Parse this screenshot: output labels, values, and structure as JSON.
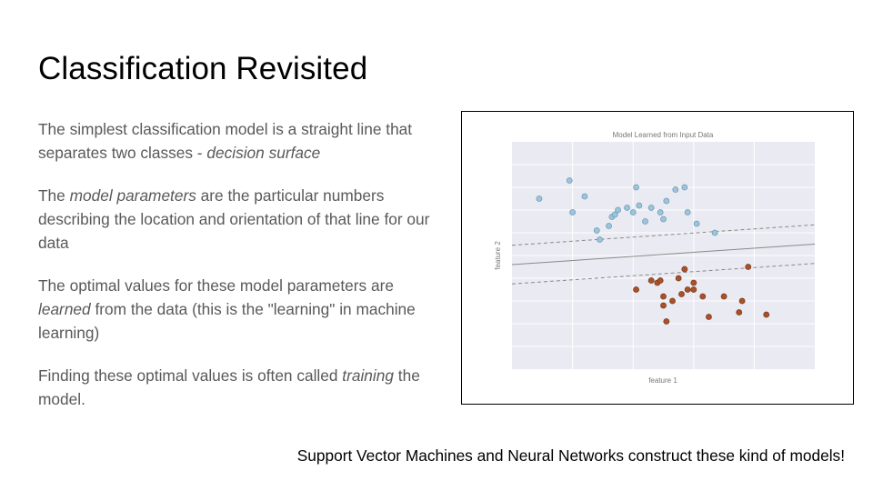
{
  "slide": {
    "title": "Classification Revisited",
    "paragraphs": [
      [
        {
          "text": "The simplest classification model is a straight line that separates two classes - ",
          "italic": false
        },
        {
          "text": "decision surface",
          "italic": true
        }
      ],
      [
        {
          "text": "The ",
          "italic": false
        },
        {
          "text": "model parameters",
          "italic": true
        },
        {
          "text": " are the particular numbers describing the location and orientation of that line for our data",
          "italic": false
        }
      ],
      [
        {
          "text": "The optimal values for these model parameters are ",
          "italic": false
        },
        {
          "text": "learned",
          "italic": true
        },
        {
          "text": " from the data (this is the \"learning\" in machine learning)",
          "italic": false
        }
      ],
      [
        {
          "text": "Finding these optimal values is often called ",
          "italic": false
        },
        {
          "text": "training",
          "italic": true
        },
        {
          "text": " the model.",
          "italic": false
        }
      ]
    ],
    "footer": "Support Vector Machines and Neural Networks construct these kind of models!"
  },
  "chart_data": {
    "type": "scatter",
    "title": "Model Learned from Input Data",
    "xlabel": "feature 1",
    "ylabel": "feature 2",
    "xlim": [
      0,
      10
    ],
    "ylim": [
      0,
      10
    ],
    "grid": true,
    "legend": "none",
    "colors": {
      "class_a": "#9dc4d9",
      "class_a_edge": "#6e9db8",
      "class_b": "#a8522a",
      "class_b_edge": "#7f3a1b",
      "plot_bg": "#eaeaf2",
      "decision_line": "#8a8a8a"
    },
    "series": [
      {
        "class": "class_a",
        "x": [
          0.9,
          1.9,
          2.0,
          2.4,
          2.8,
          2.9,
          3.2,
          3.3,
          3.4,
          3.5,
          3.8,
          4.0,
          4.1,
          4.2,
          4.4,
          4.6,
          4.9,
          5.0,
          5.1,
          5.4,
          5.7,
          5.8,
          6.1,
          6.7
        ],
        "y": [
          7.5,
          8.3,
          6.9,
          7.6,
          6.1,
          5.7,
          6.3,
          6.7,
          6.8,
          7.0,
          7.1,
          6.9,
          8.0,
          7.2,
          6.5,
          7.1,
          6.9,
          6.6,
          7.4,
          7.9,
          8.0,
          6.9,
          6.4,
          6.0
        ]
      },
      {
        "class": "class_b",
        "x": [
          4.1,
          4.6,
          4.8,
          4.9,
          5.0,
          5.0,
          5.1,
          5.3,
          5.5,
          5.6,
          5.7,
          5.8,
          6.0,
          6.0,
          6.3,
          6.5,
          7.0,
          7.5,
          7.6,
          7.8,
          8.4
        ],
        "y": [
          3.5,
          3.9,
          3.8,
          3.9,
          3.2,
          2.8,
          2.1,
          3.0,
          4.0,
          3.3,
          4.4,
          3.5,
          3.8,
          3.5,
          3.2,
          2.3,
          3.2,
          2.5,
          3.0,
          4.5,
          2.4
        ]
      }
    ],
    "decision_line": {
      "y_at_xmin": 4.6,
      "y_at_xmax": 5.5
    },
    "margin_offset": 0.85
  }
}
